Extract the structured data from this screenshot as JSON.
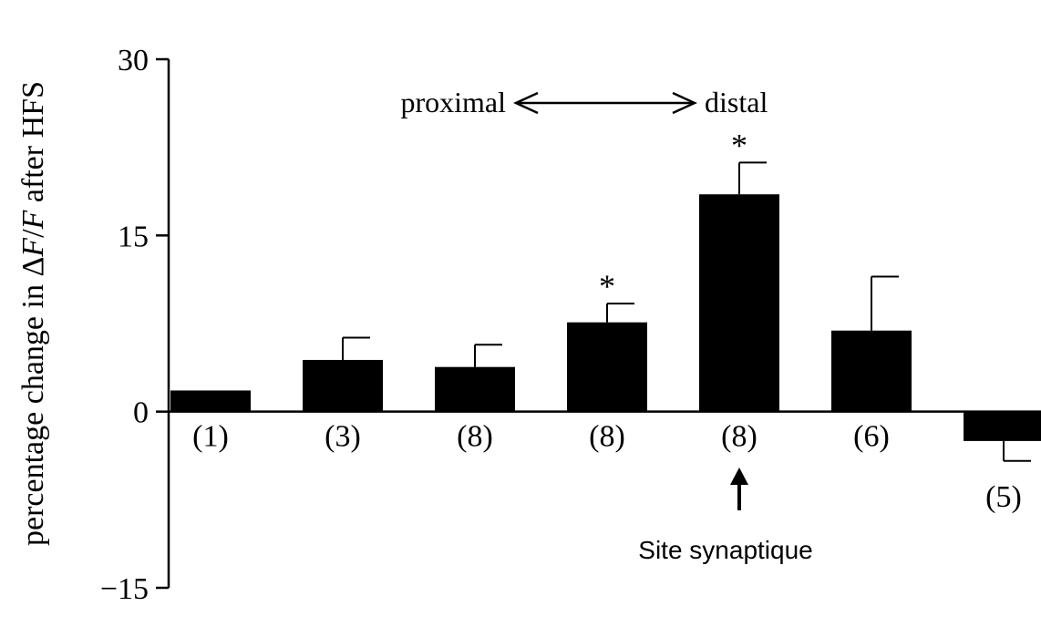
{
  "chart_data": {
    "type": "bar",
    "ylabel_parts": [
      "percentage change in Δ",
      "F",
      "/",
      "F",
      " after HFS"
    ],
    "ylim": [
      -15,
      30
    ],
    "yticks": [
      {
        "value": 30,
        "label": "30"
      },
      {
        "value": 15,
        "label": "15"
      },
      {
        "value": 0,
        "label": "0"
      },
      {
        "value": -15,
        "label": "−15"
      }
    ],
    "categories": [
      "(1)",
      "(3)",
      "(8)",
      "(8)",
      "(8)",
      "(6)",
      "(5)"
    ],
    "values": [
      1.8,
      4.4,
      3.8,
      7.6,
      18.5,
      6.9,
      -2.5
    ],
    "errors": [
      0,
      1.9,
      1.9,
      1.6,
      2.7,
      4.6,
      1.7
    ],
    "significant": [
      false,
      false,
      false,
      true,
      true,
      false,
      false
    ],
    "significance_marker": "*",
    "gradient_annotation": {
      "left": "proximal",
      "right": "distal"
    },
    "arrow_annotation": {
      "label": "Site synaptique",
      "category_index": 4
    }
  },
  "colors": {
    "bar": "#000000",
    "axis": "#000000",
    "text": "#000000"
  }
}
